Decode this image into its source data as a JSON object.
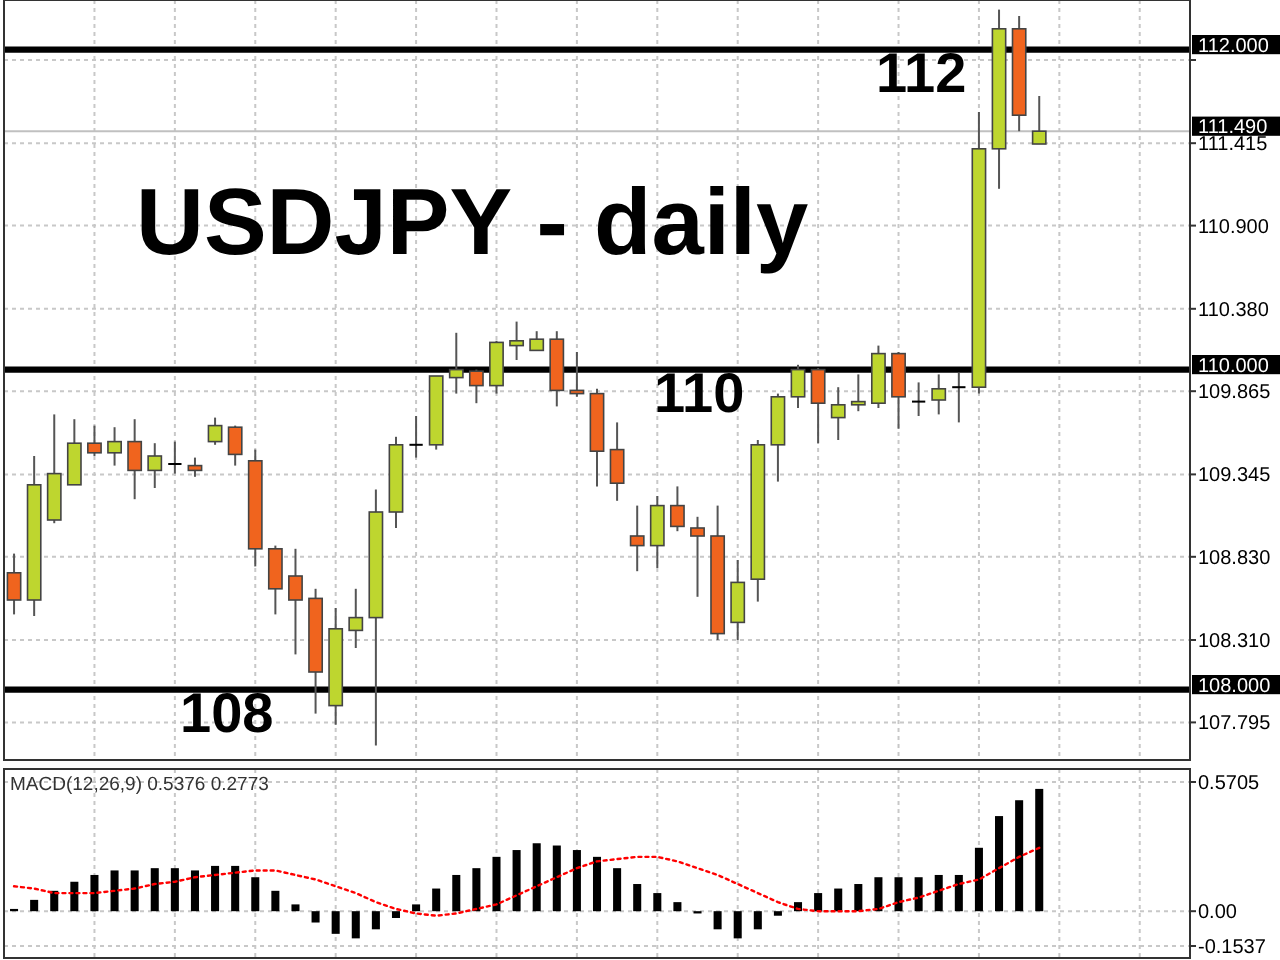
{
  "chart_data": [
    {
      "type": "candlestick",
      "title": "USDJPY - daily",
      "categories": [
        null,
        null,
        null,
        null,
        null,
        null,
        null,
        null,
        null,
        null,
        null,
        null,
        null,
        null,
        null,
        null,
        null,
        null,
        null,
        null,
        null,
        null,
        null,
        null,
        null,
        null,
        null,
        null,
        null,
        null,
        null,
        null,
        null,
        null,
        null,
        null,
        null,
        null,
        null,
        null,
        null,
        null,
        null,
        null,
        null,
        null,
        null,
        null,
        null,
        null,
        null,
        null,
        null,
        null,
        null,
        null,
        null,
        null,
        null
      ],
      "ohlc": [
        [
          108.73,
          108.85,
          108.47,
          108.56
        ],
        [
          108.56,
          109.46,
          108.46,
          109.28
        ],
        [
          109.06,
          109.72,
          109.04,
          109.35
        ],
        [
          109.28,
          109.69,
          109.28,
          109.54
        ],
        [
          109.54,
          109.65,
          109.46,
          109.48
        ],
        [
          109.48,
          109.64,
          109.4,
          109.55
        ],
        [
          109.55,
          109.69,
          109.19,
          109.37
        ],
        [
          109.37,
          109.54,
          109.26,
          109.46
        ],
        [
          109.41,
          109.55,
          109.35,
          109.41
        ],
        [
          109.4,
          109.45,
          109.33,
          109.37
        ],
        [
          109.55,
          109.7,
          109.53,
          109.65
        ],
        [
          109.64,
          109.65,
          109.4,
          109.47
        ],
        [
          109.43,
          109.5,
          108.77,
          108.88
        ],
        [
          108.88,
          108.9,
          108.47,
          108.63
        ],
        [
          108.71,
          108.88,
          108.22,
          108.56
        ],
        [
          108.57,
          108.63,
          107.85,
          108.11
        ],
        [
          107.9,
          108.51,
          107.78,
          108.38
        ],
        [
          108.37,
          108.63,
          108.26,
          108.45
        ],
        [
          108.45,
          109.25,
          107.65,
          109.11
        ],
        [
          109.11,
          109.58,
          109.01,
          109.53
        ],
        [
          109.53,
          109.71,
          109.45,
          109.53
        ],
        [
          109.53,
          109.96,
          109.5,
          109.96
        ],
        [
          109.95,
          110.23,
          109.85,
          110.0
        ],
        [
          109.99,
          110.0,
          109.79,
          109.9
        ],
        [
          109.9,
          110.18,
          109.85,
          110.17
        ],
        [
          110.15,
          110.3,
          110.06,
          110.18
        ],
        [
          110.12,
          110.24,
          110.12,
          110.19
        ],
        [
          110.19,
          110.24,
          109.77,
          109.87
        ],
        [
          109.87,
          110.11,
          109.83,
          109.85
        ],
        [
          109.85,
          109.88,
          109.27,
          109.49
        ],
        [
          109.5,
          109.67,
          109.18,
          109.29
        ],
        [
          108.96,
          109.15,
          108.74,
          108.9
        ],
        [
          108.9,
          109.21,
          108.76,
          109.15
        ],
        [
          109.15,
          109.27,
          108.99,
          109.02
        ],
        [
          109.01,
          109.08,
          108.58,
          108.96
        ],
        [
          108.96,
          109.15,
          108.31,
          108.35
        ],
        [
          108.42,
          108.81,
          108.31,
          108.67
        ],
        [
          108.69,
          109.56,
          108.55,
          109.53
        ],
        [
          109.53,
          109.85,
          109.3,
          109.83
        ],
        [
          109.83,
          110.03,
          109.76,
          110.0
        ],
        [
          110.0,
          110.01,
          109.54,
          109.79
        ],
        [
          109.7,
          109.89,
          109.56,
          109.78
        ],
        [
          109.78,
          109.97,
          109.74,
          109.8
        ],
        [
          109.79,
          110.15,
          109.76,
          110.1
        ],
        [
          110.1,
          110.11,
          109.63,
          109.83
        ],
        [
          109.8,
          109.92,
          109.71,
          109.8
        ],
        [
          109.81,
          109.97,
          109.72,
          109.88
        ],
        [
          109.89,
          109.98,
          109.67,
          109.89
        ],
        [
          109.89,
          111.61,
          109.85,
          111.38
        ],
        [
          111.38,
          112.25,
          111.13,
          112.13
        ],
        [
          112.13,
          112.21,
          111.49,
          111.59
        ],
        [
          111.41,
          111.71,
          111.41,
          111.49
        ],
        null,
        null,
        null,
        null,
        null,
        null,
        null
      ],
      "colors": [
        "#f0641e",
        "#bed62f",
        "#bed62f",
        "#bed62f",
        "#f0641e",
        "#bed62f",
        "#f0641e",
        "#bed62f",
        "#000000",
        "#f0641e",
        "#bed62f",
        "#f0641e",
        "#f0641e",
        "#f0641e",
        "#f0641e",
        "#f0641e",
        "#bed62f",
        "#bed62f",
        "#bed62f",
        "#bed62f",
        "#000000",
        "#bed62f",
        "#bed62f",
        "#f0641e",
        "#bed62f",
        "#bed62f",
        "#bed62f",
        "#f0641e",
        "#f0641e",
        "#f0641e",
        "#f0641e",
        "#f0641e",
        "#bed62f",
        "#f0641e",
        "#f0641e",
        "#f0641e",
        "#bed62f",
        "#bed62f",
        "#bed62f",
        "#bed62f",
        "#f0641e",
        "#bed62f",
        "#bed62f",
        "#bed62f",
        "#f0641e",
        "#000000",
        "#bed62f",
        "#000000",
        "#bed62f",
        "#bed62f",
        "#f0641e",
        "#bed62f",
        null,
        null,
        null,
        null,
        null,
        null,
        null
      ],
      "ylim": [
        107.56,
        112.31
      ],
      "yticks": [
        {
          "value": 111.935,
          "label": null
        },
        {
          "value": 111.415,
          "label": "111.415"
        },
        {
          "value": 110.9,
          "label": "110.900"
        },
        {
          "value": 110.38,
          "label": "110.380"
        },
        {
          "value": 109.865,
          "label": "109.865"
        },
        {
          "value": 109.345,
          "label": "109.345"
        },
        {
          "value": 108.83,
          "label": "108.830"
        },
        {
          "value": 108.31,
          "label": "108.310"
        },
        {
          "value": 107.795,
          "label": "107.795"
        }
      ],
      "grid": true,
      "tick_labels": "y",
      "ref_lines": [
        {
          "axis": "y",
          "value": 112,
          "label": "112",
          "color": "#000000"
        },
        {
          "axis": "y",
          "value": 111.49,
          "color": "#c0c0c0"
        },
        {
          "axis": "y",
          "value": 110,
          "label": "110",
          "color": "#000000"
        },
        {
          "axis": "y",
          "value": 108,
          "label": "108",
          "color": "#000000"
        }
      ],
      "annotations": [
        "112.000",
        "111.490",
        "110.000",
        "108.000"
      ]
    },
    {
      "type": "bar",
      "title": "MACD(12,26,9) 0.5376 0.2773",
      "categories": [
        null,
        null,
        null,
        null,
        null,
        null,
        null,
        null,
        null,
        null,
        null,
        null,
        null,
        null,
        null,
        null,
        null,
        null,
        null,
        null,
        null,
        null,
        null,
        null,
        null,
        null,
        null,
        null,
        null,
        null,
        null,
        null,
        null,
        null,
        null,
        null,
        null,
        null,
        null,
        null,
        null,
        null,
        null,
        null,
        null,
        null,
        null,
        null,
        null,
        null,
        null,
        null,
        null,
        null,
        null,
        null,
        null,
        null,
        null
      ],
      "series": [
        {
          "color": "#000000",
          "values": [
            0.01,
            0.05,
            0.09,
            0.13,
            0.16,
            0.18,
            0.18,
            0.19,
            0.19,
            0.18,
            0.2,
            0.2,
            0.15,
            0.09,
            0.03,
            -0.05,
            -0.1,
            -0.12,
            -0.08,
            -0.03,
            0.03,
            0.1,
            0.16,
            0.19,
            0.24,
            0.27,
            0.3,
            0.29,
            0.27,
            0.24,
            0.19,
            0.12,
            0.08,
            0.04,
            -0.01,
            -0.08,
            -0.12,
            -0.08,
            -0.02,
            0.04,
            0.08,
            0.1,
            0.12,
            0.15,
            0.15,
            0.15,
            0.16,
            0.16,
            0.28,
            0.42,
            0.49,
            0.54,
            null,
            null,
            null,
            null,
            null,
            null,
            null
          ]
        },
        {
          "type": "line",
          "color": "#ff0000",
          "line_style": "dotted",
          "values": [
            0.11,
            0.1,
            0.08,
            0.08,
            0.08,
            0.09,
            0.1,
            0.12,
            0.13,
            0.15,
            0.16,
            0.17,
            0.18,
            0.18,
            0.16,
            0.14,
            0.11,
            0.08,
            0.04,
            0.01,
            -0.01,
            -0.02,
            -0.01,
            0.01,
            0.03,
            0.07,
            0.11,
            0.15,
            0.19,
            0.22,
            0.23,
            0.24,
            0.24,
            0.22,
            0.19,
            0.16,
            0.12,
            0.08,
            0.04,
            0.01,
            0.0,
            0.0,
            0.0,
            0.01,
            0.04,
            0.06,
            0.09,
            0.12,
            0.14,
            0.19,
            0.24,
            0.28,
            null,
            null,
            null,
            null,
            null,
            null,
            null
          ]
        }
      ],
      "ylim": [
        -0.1537,
        0.5705
      ],
      "yticks": [
        {
          "value": 0.5705,
          "label": "0.5705"
        },
        {
          "value": 0,
          "label": "0.00"
        },
        {
          "value": -0.1537,
          "label": "-0.1537"
        }
      ],
      "grid": true,
      "tick_labels": "y"
    }
  ]
}
